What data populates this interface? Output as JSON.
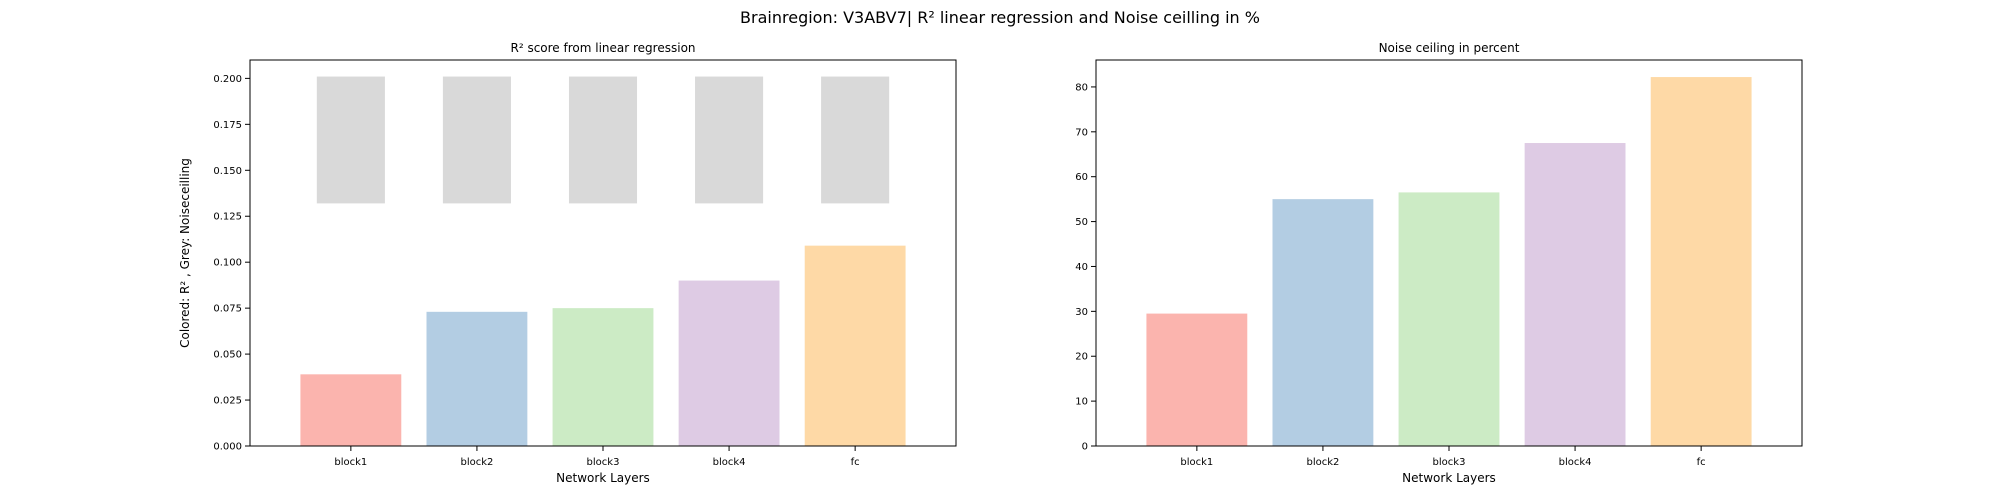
{
  "title": "Brainregion: V3ABV7| R² linear regression and Noise ceilling in %",
  "chart_data": [
    {
      "type": "bar",
      "title": "R² score from linear regression",
      "xlabel": "Network Layers",
      "ylabel": "Colored: R² , Grey: Noiseceilling",
      "categories": [
        "block1",
        "block2",
        "block3",
        "block4",
        "fc"
      ],
      "series": [
        {
          "role": "r2",
          "values": [
            0.039,
            0.073,
            0.075,
            0.09,
            0.109
          ]
        },
        {
          "role": "noise-ceiling",
          "color": "#d9d9d9",
          "range": [
            0.132,
            0.201
          ],
          "values": [
            [
              0.132,
              0.201
            ],
            [
              0.132,
              0.201
            ],
            [
              0.132,
              0.201
            ],
            [
              0.132,
              0.201
            ],
            [
              0.132,
              0.201
            ]
          ]
        }
      ],
      "ylim": [
        0,
        0.21
      ],
      "yticks": [
        "0.000",
        "0.025",
        "0.050",
        "0.075",
        "0.100",
        "0.125",
        "0.150",
        "0.175",
        "0.200"
      ],
      "grid": false,
      "colors": [
        "#fbb4ae",
        "#b3cde3",
        "#ccebc5",
        "#decbe4",
        "#fed9a6"
      ]
    },
    {
      "type": "bar",
      "title": "Noise ceiling in percent",
      "xlabel": "Network Layers",
      "ylabel": "",
      "categories": [
        "block1",
        "block2",
        "block3",
        "block4",
        "fc"
      ],
      "values": [
        29.5,
        55.0,
        56.5,
        67.5,
        82.2
      ],
      "ylim": [
        0,
        86
      ],
      "yticks": [
        "0",
        "10",
        "20",
        "30",
        "40",
        "50",
        "60",
        "70",
        "80"
      ],
      "grid": false,
      "colors": [
        "#fbb4ae",
        "#b3cde3",
        "#ccebc5",
        "#decbe4",
        "#fed9a6"
      ]
    }
  ]
}
